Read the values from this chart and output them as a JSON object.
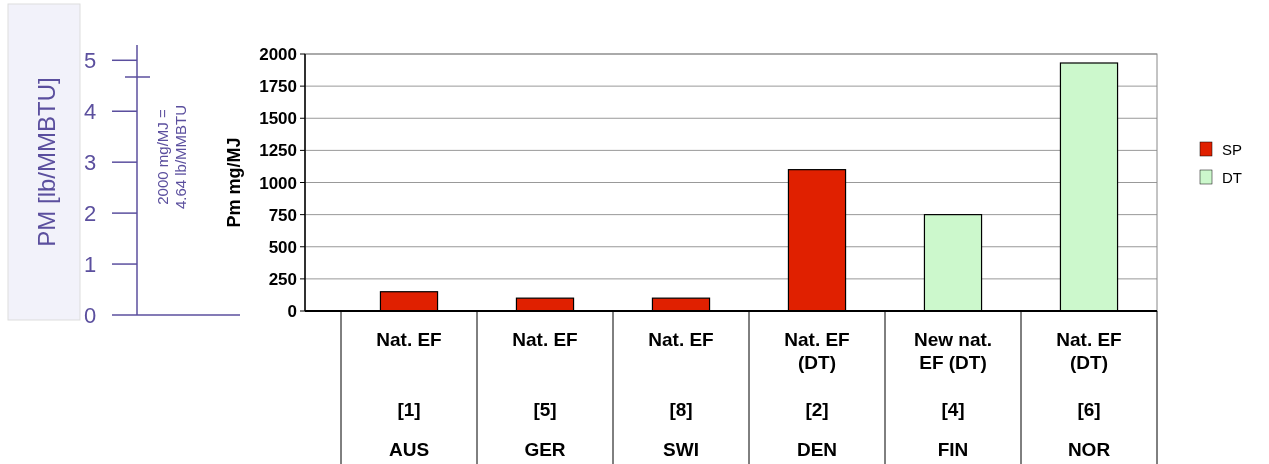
{
  "chart_data": {
    "type": "bar",
    "ylabel": "Pm mg/MJ",
    "y2label": "PM [lb/MMBTU]",
    "categories": [
      "Nat. EF\n[1]\nAUS",
      "Nat. EF\n[5]\nGER",
      "Nat. EF\n[8]\nSWI",
      "Nat. EF\n(DT)\n[2]\nDEN",
      "New nat.\nEF (DT)\n[4]\nFIN",
      "Nat. EF\n(DT)\n[6]\nNOR"
    ],
    "series": [
      {
        "name": "SP",
        "color": "#e02000",
        "values": [
          150,
          100,
          100,
          1100,
          null,
          null
        ]
      },
      {
        "name": "DT",
        "color": "#ccf8cc",
        "values": [
          null,
          null,
          null,
          null,
          750,
          1930
        ]
      }
    ],
    "ylim": [
      0,
      2000
    ],
    "yticks": [
      0,
      250,
      500,
      750,
      1000,
      1250,
      1500,
      1750,
      2000
    ],
    "y2lim": [
      0,
      5.3
    ],
    "y2ticks": [
      0,
      1,
      2,
      3,
      4,
      5
    ],
    "annotations": [
      "2000 mg/MJ = 4.64 lb/MMBTU"
    ],
    "grid": "y",
    "legend": "right"
  }
}
